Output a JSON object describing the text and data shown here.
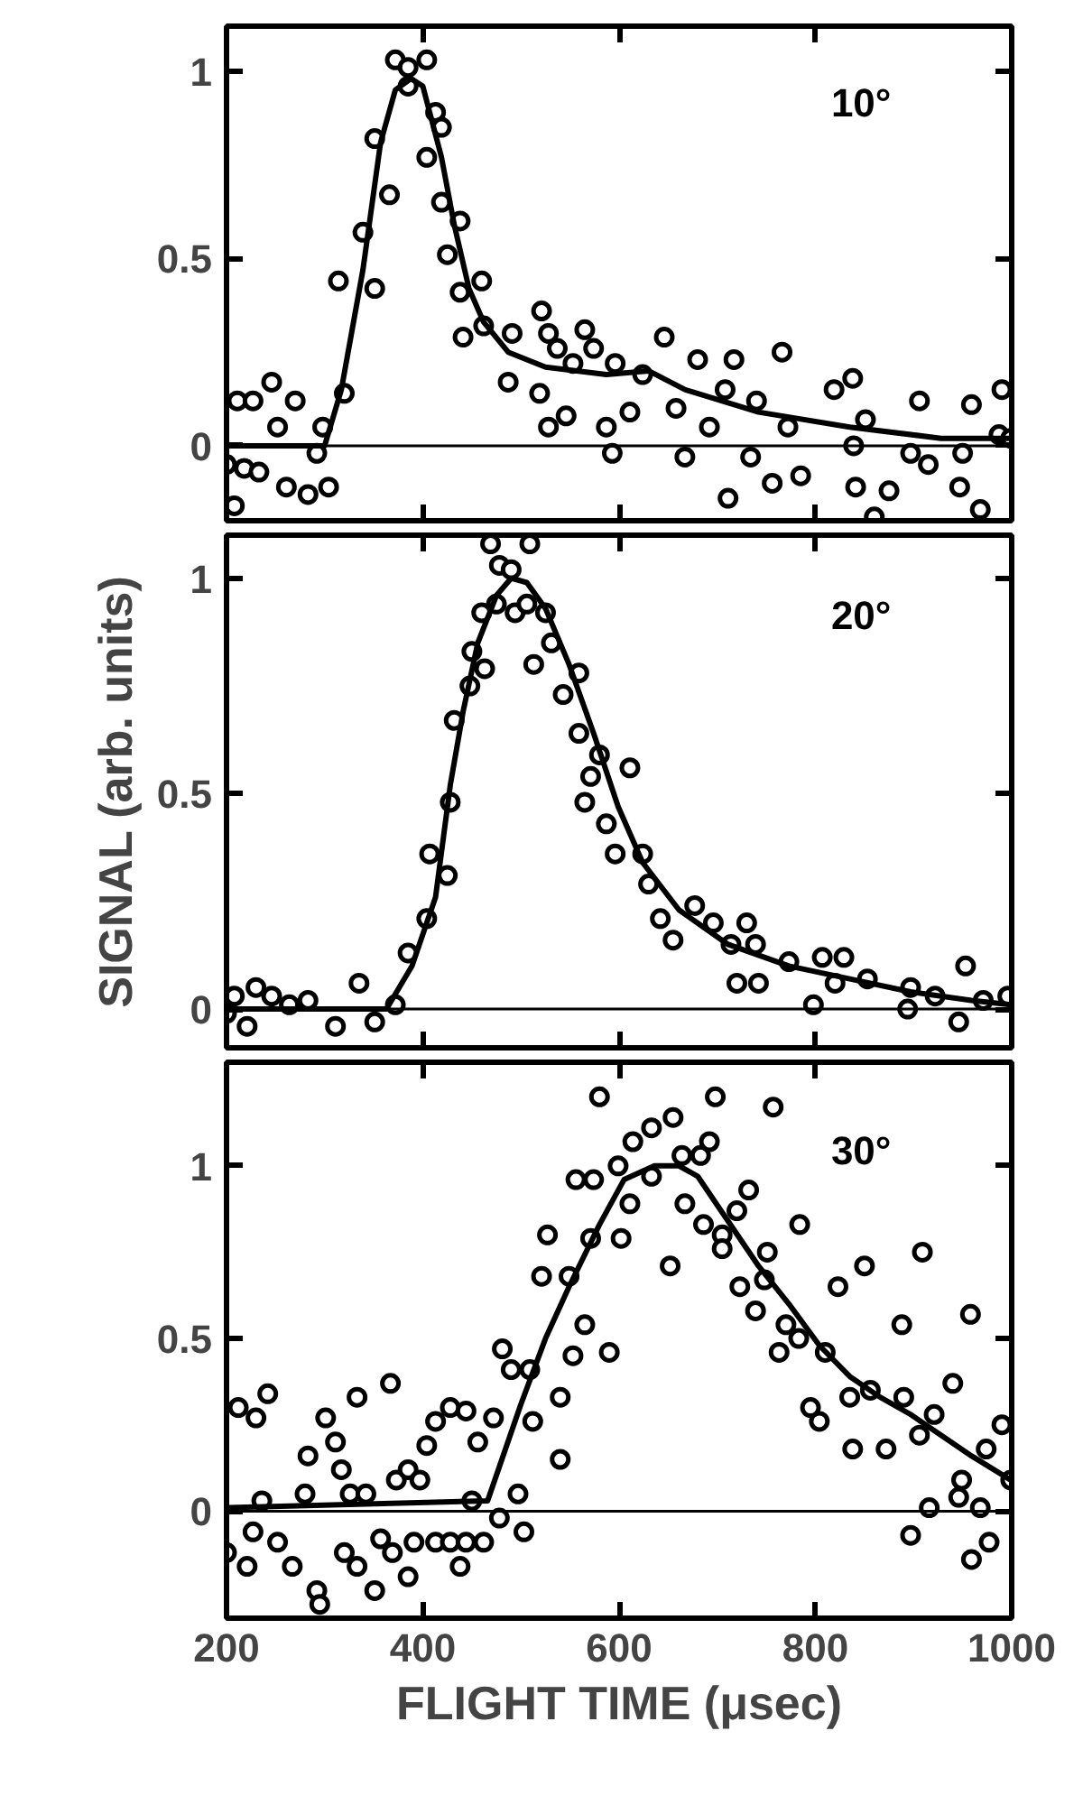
{
  "chart_data": [
    {
      "type": "scatter",
      "marker": "circle",
      "grid": false,
      "tick_labels": "y",
      "xlim": [
        200,
        1000
      ],
      "xticks": [
        200,
        400,
        600,
        800,
        1000
      ],
      "ylim": [
        -0.2,
        1.12
      ],
      "yticks": [
        0,
        0.5,
        1
      ],
      "annotations": [
        "10°"
      ],
      "ref_lines": [
        {
          "axis": "y",
          "value": 0,
          "color": "#000000"
        }
      ],
      "series": [
        {
          "color": "#000000",
          "x": [
            211,
            227,
            246,
            200,
            208,
            218,
            233,
            261,
            283,
            304,
            252,
            270,
            298,
            292,
            314,
            320,
            339,
            351,
            351,
            366,
            372,
            385,
            404,
            385,
            413,
            419,
            404,
            419,
            425,
            438,
            438,
            460,
            441,
            462,
            491,
            521,
            528,
            537,
            565,
            574,
            553,
            487,
            519,
            528,
            546,
            596,
            611,
            587,
            593,
            646,
            624,
            680,
            717,
            658,
            667,
            692,
            711,
            708,
            766,
            740,
            734,
            756,
            785,
            772,
            819,
            838,
            851,
            839,
            841,
            875,
            860,
            906,
            897,
            915,
            959,
            950,
            947,
            968,
            990,
            987,
            999
          ],
          "values": [
            0.12,
            0.12,
            0.17,
            -0.05,
            -0.16,
            -0.06,
            -0.07,
            -0.11,
            -0.13,
            -0.11,
            0.05,
            0.12,
            0.05,
            -0.02,
            0.44,
            0.14,
            0.57,
            0.42,
            0.82,
            0.67,
            1.03,
            1.01,
            1.03,
            0.96,
            0.89,
            0.85,
            0.77,
            0.65,
            0.51,
            0.6,
            0.41,
            0.44,
            0.29,
            0.32,
            0.3,
            0.36,
            0.3,
            0.26,
            0.31,
            0.26,
            0.22,
            0.17,
            0.14,
            0.05,
            0.08,
            0.22,
            0.09,
            0.05,
            -0.02,
            0.29,
            0.19,
            0.23,
            0.23,
            0.1,
            -0.03,
            0.05,
            -0.14,
            0.15,
            0.25,
            0.12,
            -0.03,
            -0.1,
            -0.08,
            0.05,
            0.15,
            0.18,
            0.07,
            0.0,
            -0.11,
            -0.12,
            -0.19,
            0.12,
            -0.02,
            -0.05,
            0.11,
            -0.02,
            -0.11,
            -0.17,
            0.15,
            0.03,
            0.02
          ]
        },
        {
          "type": "line",
          "marker": "none",
          "color": "#000000",
          "x": [
            200,
            300,
            317,
            339,
            357,
            372,
            388,
            400,
            419,
            432,
            447,
            462,
            487,
            525,
            587,
            630,
            667,
            742,
            835,
            928,
            1000
          ],
          "values": [
            0,
            0,
            0.15,
            0.47,
            0.81,
            0.95,
            0.98,
            0.96,
            0.77,
            0.59,
            0.42,
            0.33,
            0.25,
            0.21,
            0.19,
            0.2,
            0.15,
            0.09,
            0.05,
            0.02,
            0.02
          ]
        }
      ]
    },
    {
      "type": "scatter",
      "marker": "circle",
      "grid": false,
      "tick_labels": "y",
      "ylabel": "SIGNAL (arb. units)",
      "xlim": [
        200,
        1000
      ],
      "xticks": [
        200,
        400,
        600,
        800,
        1000
      ],
      "ylim": [
        -0.09,
        1.1
      ],
      "yticks": [
        0,
        0.5,
        1
      ],
      "annotations": [
        "20°"
      ],
      "ref_lines": [
        {
          "axis": "y",
          "value": 0,
          "color": "#000000"
        }
      ],
      "series": [
        {
          "color": "#000000",
          "x": [
            200,
            208,
            221,
            230,
            246,
            264,
            283,
            311,
            335,
            351,
            372,
            385,
            404,
            425,
            407,
            428,
            432,
            448,
            463,
            450,
            460,
            475,
            478,
            490,
            469,
            509,
            494,
            506,
            525,
            531,
            513,
            559,
            543,
            559,
            580,
            611,
            571,
            565,
            587,
            596,
            624,
            630,
            642,
            677,
            655,
            696,
            730,
            714,
            739,
            720,
            742,
            773,
            807,
            829,
            798,
            820,
            853,
            897,
            922,
            953,
            946,
            971,
            996,
            894
          ],
          "values": [
            -0.01,
            0.03,
            -0.04,
            0.05,
            0.03,
            0.01,
            0.02,
            -0.04,
            0.06,
            -0.03,
            0.01,
            0.13,
            0.21,
            0.31,
            0.36,
            0.48,
            0.67,
            0.75,
            0.79,
            0.83,
            0.92,
            0.94,
            1.03,
            1.02,
            1.08,
            1.08,
            0.92,
            0.94,
            0.92,
            0.85,
            0.8,
            0.78,
            0.73,
            0.64,
            0.59,
            0.56,
            0.54,
            0.48,
            0.43,
            0.36,
            0.36,
            0.29,
            0.21,
            0.24,
            0.16,
            0.2,
            0.2,
            0.15,
            0.15,
            0.06,
            0.06,
            0.11,
            0.12,
            0.12,
            0.01,
            0.06,
            0.07,
            0.05,
            0.03,
            0.1,
            -0.03,
            0.02,
            0.03,
            0.0
          ]
        },
        {
          "type": "line",
          "marker": "none",
          "color": "#000000",
          "x": [
            200,
            363,
            389,
            413,
            428,
            441,
            456,
            475,
            490,
            506,
            525,
            549,
            574,
            599,
            624,
            661,
            711,
            773,
            835,
            897,
            959,
            999
          ],
          "values": [
            0,
            0,
            0.1,
            0.26,
            0.52,
            0.69,
            0.85,
            0.96,
            1.0,
            0.99,
            0.93,
            0.8,
            0.64,
            0.47,
            0.34,
            0.23,
            0.15,
            0.1,
            0.07,
            0.04,
            0.02,
            0.01
          ]
        }
      ]
    },
    {
      "type": "scatter",
      "marker": "circle",
      "grid": false,
      "xlabel": "FLIGHT TIME (μsec)",
      "xlim": [
        200,
        1000
      ],
      "xticks": [
        200,
        400,
        600,
        800,
        1000
      ],
      "ylim": [
        -0.31,
        1.3
      ],
      "yticks": [
        0,
        0.5,
        1
      ],
      "annotations": [
        "30°"
      ],
      "ref_lines": [
        {
          "axis": "y",
          "value": 0,
          "color": "#000000"
        }
      ],
      "series": [
        {
          "color": "#000000",
          "x": [
            200,
            212,
            230,
            242,
            221,
            227,
            236,
            252,
            267,
            280,
            283,
            301,
            311,
            317,
            326,
            342,
            292,
            295,
            320,
            333,
            333,
            367,
            351,
            357,
            369,
            373,
            385,
            385,
            391,
            397,
            404,
            413,
            428,
            444,
            413,
            428,
            438,
            444,
            456,
            472,
            450,
            462,
            478,
            481,
            490,
            509,
            503,
            497,
            512,
            527,
            521,
            540,
            553,
            549,
            540,
            565,
            556,
            574,
            571,
            580,
            590,
            599,
            602,
            611,
            614,
            633,
            633,
            655,
            652,
            667,
            664,
            683,
            692,
            698,
            686,
            705,
            705,
            720,
            732,
            757,
            723,
            739,
            751,
            748,
            763,
            784,
            770,
            783,
            810,
            823,
            850,
            888,
            909,
            958,
            804,
            795,
            835,
            838,
            856,
            872,
            890,
            906,
            921,
            940,
            897,
            916,
            949,
            946,
            968,
            959,
            977,
            974,
            990,
            999
          ],
          "values": [
            -0.12,
            0.3,
            0.27,
            0.34,
            -0.16,
            -0.06,
            0.03,
            -0.09,
            -0.16,
            0.05,
            0.16,
            0.27,
            0.2,
            0.12,
            0.05,
            0.05,
            -0.23,
            -0.27,
            -0.12,
            -0.16,
            0.33,
            0.37,
            -0.23,
            -0.08,
            -0.12,
            0.09,
            0.12,
            -0.19,
            -0.09,
            0.09,
            0.19,
            0.26,
            0.3,
            0.29,
            -0.09,
            -0.09,
            -0.16,
            -0.09,
            0.2,
            0.27,
            0.03,
            -0.09,
            -0.02,
            0.47,
            0.41,
            0.41,
            -0.06,
            0.05,
            0.26,
            0.8,
            0.68,
            0.33,
            0.45,
            0.68,
            0.15,
            0.54,
            0.96,
            0.96,
            0.79,
            1.2,
            0.46,
            1.0,
            0.79,
            0.89,
            1.07,
            1.11,
            0.97,
            1.14,
            0.71,
            0.89,
            1.03,
            1.03,
            1.07,
            1.2,
            0.83,
            0.8,
            0.76,
            0.87,
            0.93,
            1.17,
            0.65,
            0.58,
            0.75,
            0.67,
            0.46,
            0.83,
            0.54,
            0.5,
            0.46,
            0.65,
            0.71,
            0.54,
            0.75,
            0.57,
            0.26,
            0.3,
            0.33,
            0.18,
            0.35,
            0.18,
            0.33,
            0.22,
            0.28,
            0.37,
            -0.07,
            0.01,
            0.09,
            0.04,
            0.01,
            -0.14,
            -0.09,
            0.18,
            0.25,
            0.09
          ]
        },
        {
          "type": "line",
          "marker": "none",
          "color": "#000000",
          "x": [
            200,
            466,
            500,
            525,
            549,
            580,
            605,
            636,
            661,
            680,
            711,
            742,
            773,
            804,
            835,
            866,
            897,
            928,
            959,
            999
          ],
          "values": [
            0.01,
            0.03,
            0.31,
            0.5,
            0.65,
            0.83,
            0.96,
            1.0,
            1.0,
            0.97,
            0.84,
            0.71,
            0.6,
            0.48,
            0.39,
            0.33,
            0.28,
            0.22,
            0.16,
            0.09
          ]
        }
      ]
    }
  ]
}
